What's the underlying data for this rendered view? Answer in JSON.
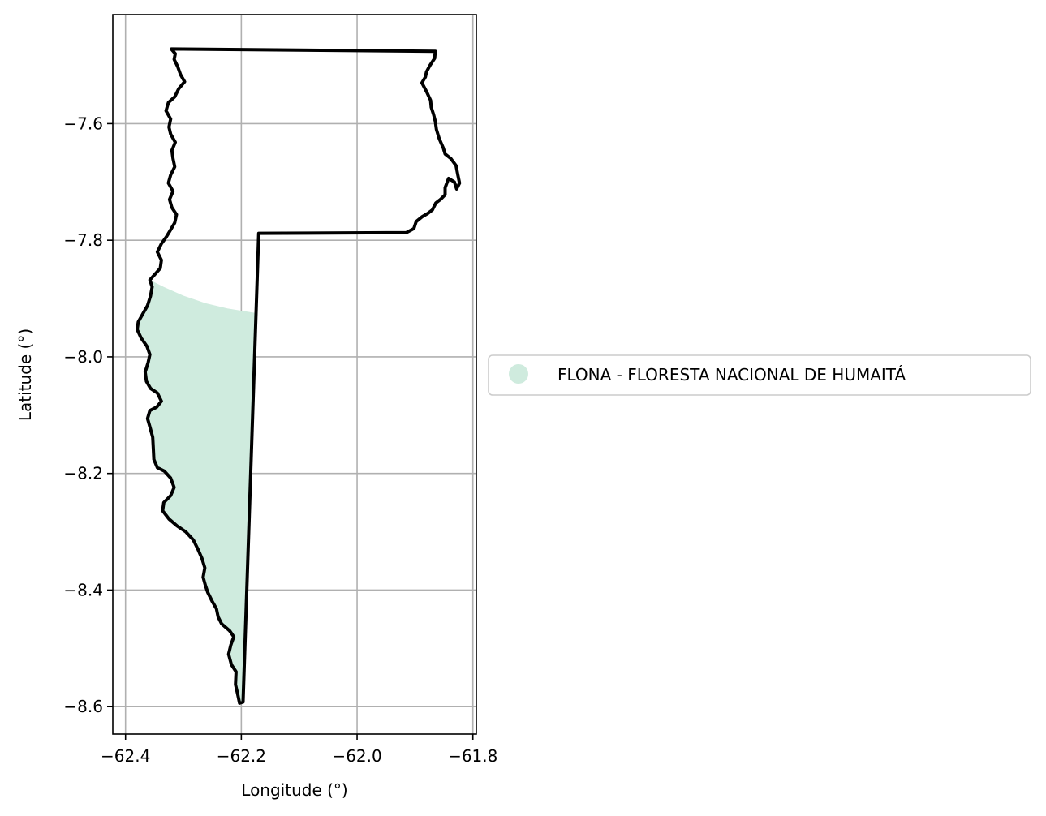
{
  "chart_data": {
    "type": "map",
    "xlabel": "Longitude (°)",
    "ylabel": "Latitude (°)",
    "xlim": [
      -62.422,
      -61.794
    ],
    "ylim": [
      -8.647,
      -7.413
    ],
    "xticks": [
      -62.4,
      -62.2,
      -62.0,
      -61.8
    ],
    "yticks": [
      -7.6,
      -7.8,
      -8.0,
      -8.2,
      -8.4,
      -8.6
    ],
    "xtick_labels": [
      "−62.4",
      "−62.2",
      "−62.0",
      "−61.8"
    ],
    "ytick_labels": [
      "−7.6",
      "−7.8",
      "−8.0",
      "−8.2",
      "−8.4",
      "−8.6"
    ],
    "grid": true,
    "legend_position": "center-right outside axes",
    "legend": [
      {
        "label": "FLONA - FLORESTA NACIONAL DE HUMAITÁ",
        "color": "#cfebde",
        "marker": "circle"
      }
    ],
    "boundary": {
      "color": "#000000",
      "coordinates": [
        [
          -62.321,
          -7.472
        ],
        [
          -61.865,
          -7.476
        ],
        [
          -61.866,
          -7.488
        ],
        [
          -61.874,
          -7.5
        ],
        [
          -61.88,
          -7.511
        ],
        [
          -61.882,
          -7.52
        ],
        [
          -61.888,
          -7.53
        ],
        [
          -61.88,
          -7.545
        ],
        [
          -61.873,
          -7.56
        ],
        [
          -61.872,
          -7.572
        ],
        [
          -61.868,
          -7.584
        ],
        [
          -61.865,
          -7.596
        ],
        [
          -61.863,
          -7.61
        ],
        [
          -61.858,
          -7.626
        ],
        [
          -61.851,
          -7.642
        ],
        [
          -61.848,
          -7.652
        ],
        [
          -61.838,
          -7.66
        ],
        [
          -61.829,
          -7.672
        ],
        [
          -61.826,
          -7.688
        ],
        [
          -61.823,
          -7.702
        ],
        [
          -61.828,
          -7.712
        ],
        [
          -61.832,
          -7.7
        ],
        [
          -61.842,
          -7.694
        ],
        [
          -61.848,
          -7.71
        ],
        [
          -61.848,
          -7.722
        ],
        [
          -61.856,
          -7.73
        ],
        [
          -61.864,
          -7.736
        ],
        [
          -61.87,
          -7.748
        ],
        [
          -61.878,
          -7.754
        ],
        [
          -61.888,
          -7.76
        ],
        [
          -61.898,
          -7.768
        ],
        [
          -61.902,
          -7.78
        ],
        [
          -61.915,
          -7.787
        ],
        [
          -62.17,
          -7.788
        ],
        [
          -62.197,
          -8.592
        ],
        [
          -62.203,
          -8.594
        ],
        [
          -62.206,
          -8.58
        ],
        [
          -62.21,
          -8.562
        ],
        [
          -62.209,
          -8.54
        ],
        [
          -62.217,
          -8.528
        ],
        [
          -62.222,
          -8.51
        ],
        [
          -62.218,
          -8.494
        ],
        [
          -62.213,
          -8.48
        ],
        [
          -62.22,
          -8.47
        ],
        [
          -62.234,
          -8.458
        ],
        [
          -62.24,
          -8.446
        ],
        [
          -62.243,
          -8.432
        ],
        [
          -62.25,
          -8.42
        ],
        [
          -62.258,
          -8.404
        ],
        [
          -62.262,
          -8.392
        ],
        [
          -62.266,
          -8.378
        ],
        [
          -62.263,
          -8.362
        ],
        [
          -62.268,
          -8.346
        ],
        [
          -62.275,
          -8.33
        ],
        [
          -62.283,
          -8.314
        ],
        [
          -62.296,
          -8.3
        ],
        [
          -62.311,
          -8.29
        ],
        [
          -62.325,
          -8.278
        ],
        [
          -62.336,
          -8.264
        ],
        [
          -62.334,
          -8.25
        ],
        [
          -62.322,
          -8.238
        ],
        [
          -62.316,
          -8.224
        ],
        [
          -62.322,
          -8.208
        ],
        [
          -62.333,
          -8.196
        ],
        [
          -62.345,
          -8.19
        ],
        [
          -62.351,
          -8.176
        ],
        [
          -62.352,
          -8.156
        ],
        [
          -62.353,
          -8.138
        ],
        [
          -62.358,
          -8.12
        ],
        [
          -62.362,
          -8.106
        ],
        [
          -62.358,
          -8.092
        ],
        [
          -62.346,
          -8.086
        ],
        [
          -62.338,
          -8.076
        ],
        [
          -62.345,
          -8.062
        ],
        [
          -62.357,
          -8.054
        ],
        [
          -62.364,
          -8.042
        ],
        [
          -62.366,
          -8.026
        ],
        [
          -62.361,
          -8.01
        ],
        [
          -62.358,
          -7.996
        ],
        [
          -62.363,
          -7.982
        ],
        [
          -62.373,
          -7.968
        ],
        [
          -62.38,
          -7.953
        ],
        [
          -62.378,
          -7.94
        ],
        [
          -62.37,
          -7.926
        ],
        [
          -62.362,
          -7.912
        ],
        [
          -62.357,
          -7.896
        ],
        [
          -62.354,
          -7.88
        ],
        [
          -62.358,
          -7.868
        ],
        [
          -62.349,
          -7.858
        ],
        [
          -62.34,
          -7.848
        ],
        [
          -62.338,
          -7.834
        ],
        [
          -62.345,
          -7.82
        ],
        [
          -62.338,
          -7.806
        ],
        [
          -62.33,
          -7.795
        ],
        [
          -62.322,
          -7.782
        ],
        [
          -62.315,
          -7.77
        ],
        [
          -62.312,
          -7.756
        ],
        [
          -62.32,
          -7.744
        ],
        [
          -62.324,
          -7.73
        ],
        [
          -62.318,
          -7.716
        ],
        [
          -62.326,
          -7.702
        ],
        [
          -62.322,
          -7.688
        ],
        [
          -62.315,
          -7.674
        ],
        [
          -62.318,
          -7.66
        ],
        [
          -62.32,
          -7.646
        ],
        [
          -62.314,
          -7.632
        ],
        [
          -62.322,
          -7.618
        ],
        [
          -62.325,
          -7.606
        ],
        [
          -62.322,
          -7.592
        ],
        [
          -62.33,
          -7.578
        ],
        [
          -62.326,
          -7.564
        ],
        [
          -62.315,
          -7.554
        ],
        [
          -62.308,
          -7.54
        ],
        [
          -62.298,
          -7.528
        ],
        [
          -62.305,
          -7.516
        ],
        [
          -62.31,
          -7.502
        ],
        [
          -62.316,
          -7.49
        ],
        [
          -62.314,
          -7.48
        ],
        [
          -62.321,
          -7.472
        ]
      ]
    },
    "flona_area": {
      "color": "#cfebde",
      "coordinates": [
        [
          -62.358,
          -7.868
        ],
        [
          -62.334,
          -7.88
        ],
        [
          -62.3,
          -7.895
        ],
        [
          -62.262,
          -7.908
        ],
        [
          -62.224,
          -7.917
        ],
        [
          -62.174,
          -7.925
        ],
        [
          -62.197,
          -8.592
        ],
        [
          -62.203,
          -8.594
        ],
        [
          -62.206,
          -8.58
        ],
        [
          -62.21,
          -8.562
        ],
        [
          -62.209,
          -8.54
        ],
        [
          -62.217,
          -8.528
        ],
        [
          -62.222,
          -8.51
        ],
        [
          -62.218,
          -8.494
        ],
        [
          -62.213,
          -8.48
        ],
        [
          -62.22,
          -8.47
        ],
        [
          -62.234,
          -8.458
        ],
        [
          -62.24,
          -8.446
        ],
        [
          -62.243,
          -8.432
        ],
        [
          -62.25,
          -8.42
        ],
        [
          -62.258,
          -8.404
        ],
        [
          -62.262,
          -8.392
        ],
        [
          -62.266,
          -8.378
        ],
        [
          -62.263,
          -8.362
        ],
        [
          -62.268,
          -8.346
        ],
        [
          -62.275,
          -8.33
        ],
        [
          -62.283,
          -8.314
        ],
        [
          -62.296,
          -8.3
        ],
        [
          -62.311,
          -8.29
        ],
        [
          -62.325,
          -8.278
        ],
        [
          -62.336,
          -8.264
        ],
        [
          -62.334,
          -8.25
        ],
        [
          -62.322,
          -8.238
        ],
        [
          -62.316,
          -8.224
        ],
        [
          -62.322,
          -8.208
        ],
        [
          -62.333,
          -8.196
        ],
        [
          -62.345,
          -8.19
        ],
        [
          -62.351,
          -8.176
        ],
        [
          -62.352,
          -8.156
        ],
        [
          -62.353,
          -8.138
        ],
        [
          -62.358,
          -8.12
        ],
        [
          -62.362,
          -8.106
        ],
        [
          -62.358,
          -8.092
        ],
        [
          -62.346,
          -8.086
        ],
        [
          -62.338,
          -8.076
        ],
        [
          -62.345,
          -8.062
        ],
        [
          -62.357,
          -8.054
        ],
        [
          -62.364,
          -8.042
        ],
        [
          -62.366,
          -8.026
        ],
        [
          -62.361,
          -8.01
        ],
        [
          -62.358,
          -7.996
        ],
        [
          -62.363,
          -7.982
        ],
        [
          -62.373,
          -7.968
        ],
        [
          -62.38,
          -7.953
        ],
        [
          -62.378,
          -7.94
        ],
        [
          -62.37,
          -7.926
        ],
        [
          -62.362,
          -7.912
        ],
        [
          -62.357,
          -7.896
        ],
        [
          -62.354,
          -7.88
        ],
        [
          -62.358,
          -7.868
        ]
      ]
    }
  }
}
